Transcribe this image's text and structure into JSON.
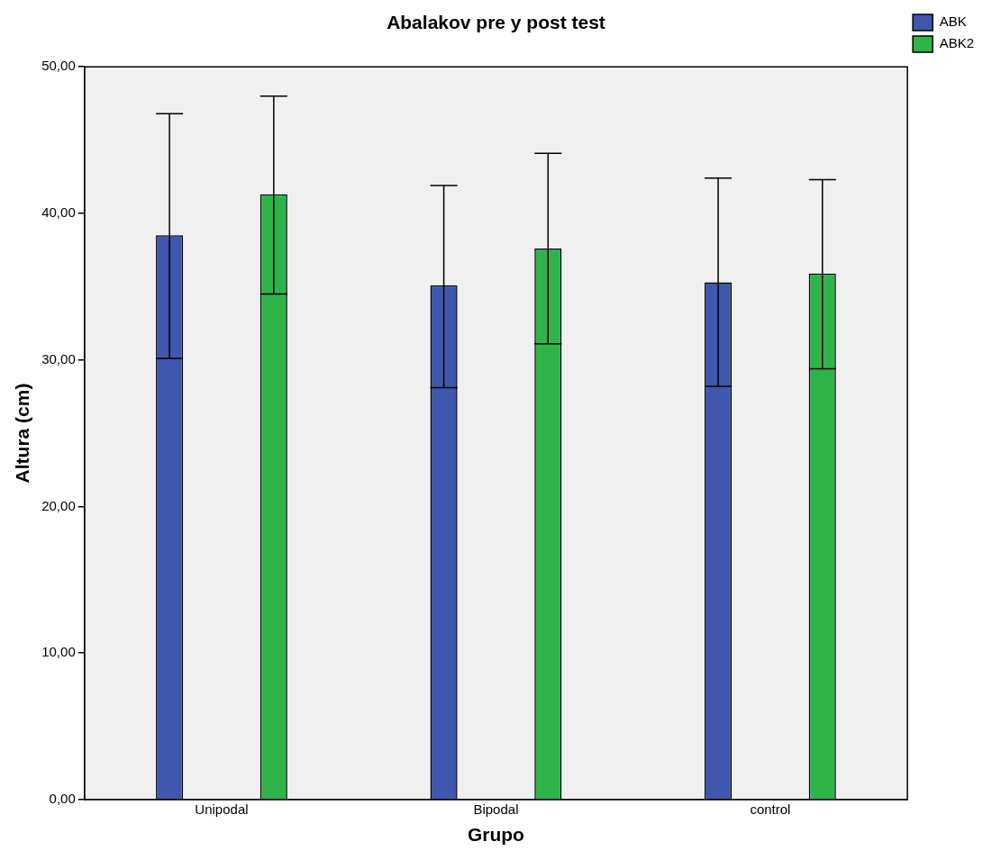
{
  "chart_data": {
    "type": "bar",
    "title": "Abalakov pre y post test",
    "xlabel": "Grupo",
    "ylabel": "Altura (cm)",
    "categories": [
      "Unipodal",
      "Bipodal",
      "control"
    ],
    "series": [
      {
        "name": "ABK",
        "color": "#3f58ad",
        "values": [
          38.5,
          35.1,
          35.3
        ],
        "errors": [
          [
            30.1,
            46.8
          ],
          [
            28.1,
            41.9
          ],
          [
            28.2,
            42.4
          ]
        ]
      },
      {
        "name": "ABK2",
        "color": "#2fb44a",
        "values": [
          41.3,
          37.6,
          35.9
        ],
        "errors": [
          [
            34.5,
            48.0
          ],
          [
            31.1,
            44.1
          ],
          [
            29.4,
            42.3
          ]
        ]
      }
    ],
    "ylim": [
      0,
      50
    ],
    "yticks": [
      {
        "value": 0,
        "label": "0,00"
      },
      {
        "value": 10,
        "label": "10,00"
      },
      {
        "value": 20,
        "label": "20,00"
      },
      {
        "value": 30,
        "label": "30,00"
      },
      {
        "value": 40,
        "label": "40,00"
      },
      {
        "value": 50,
        "label": "50,00"
      }
    ],
    "grid": false,
    "legend": "top right"
  }
}
